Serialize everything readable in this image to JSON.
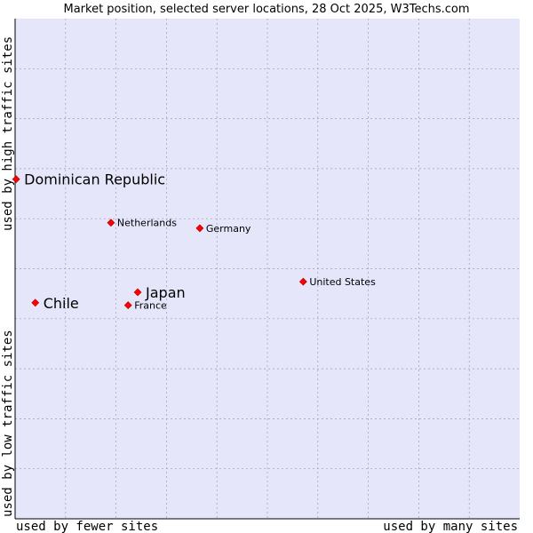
{
  "chart_data": {
    "type": "scatter",
    "title": "Market position, selected server locations, 28 Oct 2025, W3Techs.com",
    "xlabel_left": "used by fewer sites",
    "xlabel_right": "used by many sites",
    "ylabel_bottom": "used by low traffic sites",
    "ylabel_top": "used by high traffic sites",
    "xlim": [
      0,
      100
    ],
    "ylim": [
      0,
      100
    ],
    "grid": true,
    "colors": {
      "plot_bg": "#e6e6fa",
      "grid": "#9b9bb5",
      "axis": "#000000",
      "marker": "#ff0000",
      "marker_edge": "#aa0000"
    },
    "points": [
      {
        "label": "Dominican Republic",
        "x": 0.2,
        "y": 67.9,
        "emphasis": true
      },
      {
        "label": "Netherlands",
        "x": 19.0,
        "y": 59.2,
        "emphasis": false
      },
      {
        "label": "Germany",
        "x": 36.6,
        "y": 58.1,
        "emphasis": false
      },
      {
        "label": "United States",
        "x": 57.1,
        "y": 47.4,
        "emphasis": false
      },
      {
        "label": "Japan",
        "x": 24.3,
        "y": 45.3,
        "emphasis": true
      },
      {
        "label": "Chile",
        "x": 4.0,
        "y": 43.2,
        "emphasis": true
      },
      {
        "label": "France",
        "x": 22.4,
        "y": 42.7,
        "emphasis": false
      }
    ]
  }
}
